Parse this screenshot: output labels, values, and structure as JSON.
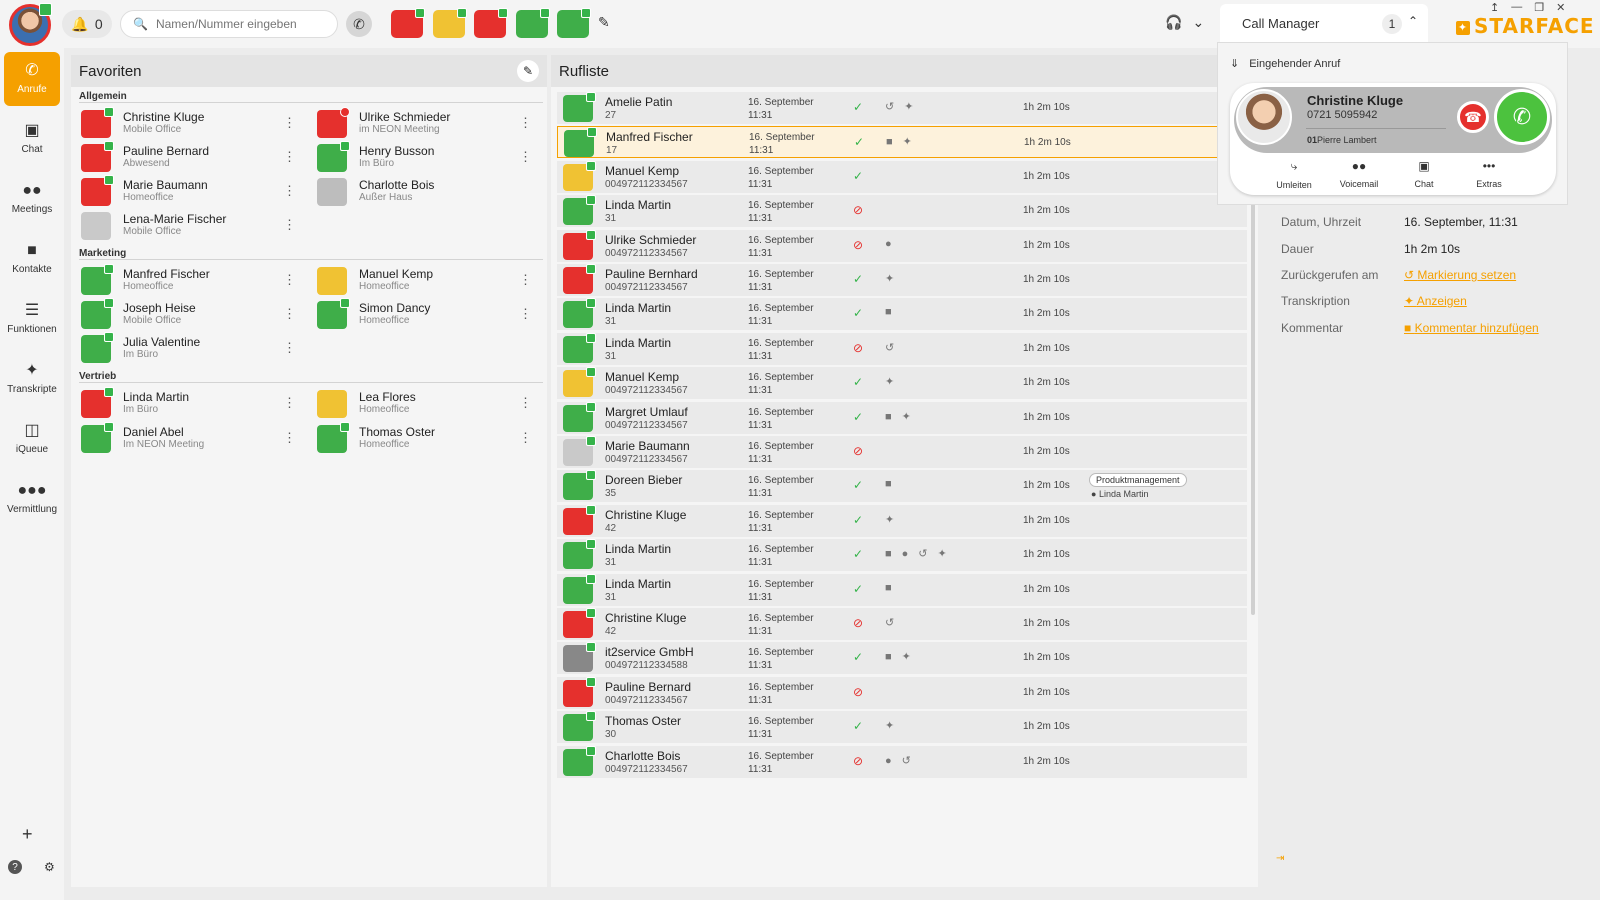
{
  "topbar": {
    "notifications": "0",
    "search_placeholder": "Namen/Nummer eingeben"
  },
  "sidebar": {
    "items": [
      {
        "label": "Anrufe",
        "icon": "phone-icon"
      },
      {
        "label": "Chat",
        "icon": "chat-icon"
      },
      {
        "label": "Meetings",
        "icon": "meetings-icon"
      },
      {
        "label": "Kontakte",
        "icon": "contacts-icon"
      },
      {
        "label": "Funktionen",
        "icon": "functions-icon"
      },
      {
        "label": "Transkripte",
        "icon": "sparkle-icon"
      },
      {
        "label": "iQueue",
        "icon": "queue-icon"
      },
      {
        "label": "Vermittlung",
        "icon": "switchboard-icon"
      }
    ]
  },
  "favorites": {
    "title": "Favoriten",
    "groups": [
      {
        "title": "Allgemein",
        "contacts": [
          {
            "name": "Christine Kluge",
            "status": "Mobile Office"
          },
          {
            "name": "Ulrike Schmieder",
            "status": "im NEON Meeting"
          },
          {
            "name": "Pauline Bernard",
            "status": "Abwesend"
          },
          {
            "name": "Henry Busson",
            "status": "Im Büro"
          },
          {
            "name": "Marie Baumann",
            "status": "Homeoffice"
          },
          {
            "name": "Charlotte Bois",
            "status": "Außer Haus"
          },
          {
            "name": "Lena-Marie Fischer",
            "status": "Mobile Office"
          }
        ]
      },
      {
        "title": "Marketing",
        "contacts": [
          {
            "name": "Manfred Fischer",
            "status": "Homeoffice"
          },
          {
            "name": "Manuel Kemp",
            "status": "Homeoffice"
          },
          {
            "name": "Joseph Heise",
            "status": "Mobile Office"
          },
          {
            "name": "Simon Dancy",
            "status": "Homeoffice"
          },
          {
            "name": "Julia Valentine",
            "status": "Im Büro"
          }
        ]
      },
      {
        "title": "Vertrieb",
        "contacts": [
          {
            "name": "Linda Martin",
            "status": "Im Büro"
          },
          {
            "name": "Lea Flores",
            "status": "Homeoffice"
          },
          {
            "name": "Daniel Abel",
            "status": "Im NEON Meeting"
          },
          {
            "name": "Thomas Oster",
            "status": "Homeoffice"
          }
        ]
      }
    ]
  },
  "calls": {
    "title": "Rufliste",
    "rows": [
      {
        "name": "Amelie Patin",
        "sub": "27",
        "date": "16. September",
        "time": "11:31",
        "duration": "1h 2m 10s"
      },
      {
        "name": "Manfred Fischer",
        "sub": "17",
        "date": "16. September",
        "time": "11:31",
        "duration": "1h 2m 10s"
      },
      {
        "name": "Manuel Kemp",
        "sub": "004972112334567",
        "date": "16. September",
        "time": "11:31",
        "duration": "1h 2m 10s"
      },
      {
        "name": "Linda Martin",
        "sub": "31",
        "date": "16. September",
        "time": "11:31",
        "duration": "1h 2m 10s"
      },
      {
        "name": "Ulrike Schmieder",
        "sub": "004972112334567",
        "date": "16. September",
        "time": "11:31",
        "duration": "1h 2m 10s"
      },
      {
        "name": "Pauline Bernhard",
        "sub": "004972112334567",
        "date": "16. September",
        "time": "11:31",
        "duration": "1h 2m 10s"
      },
      {
        "name": "Linda Martin",
        "sub": "31",
        "date": "16. September",
        "time": "11:31",
        "duration": "1h 2m 10s"
      },
      {
        "name": "Linda Martin",
        "sub": "31",
        "date": "16. September",
        "time": "11:31",
        "duration": "1h 2m 10s"
      },
      {
        "name": "Manuel Kemp",
        "sub": "004972112334567",
        "date": "16. September",
        "time": "11:31",
        "duration": "1h 2m 10s"
      },
      {
        "name": "Margret Umlauf",
        "sub": "004972112334567",
        "date": "16. September",
        "time": "11:31",
        "duration": "1h 2m 10s"
      },
      {
        "name": "Marie Baumann",
        "sub": "004972112334567",
        "date": "16. September",
        "time": "11:31",
        "duration": "1h 2m 10s"
      },
      {
        "name": "Doreen Bieber",
        "sub": "35",
        "date": "16. September",
        "time": "11:31",
        "duration": "1h 2m 10s",
        "tag": "Produktmanagement",
        "tag_user": "Linda Martin"
      },
      {
        "name": "Christine Kluge",
        "sub": "42",
        "date": "16. September",
        "time": "11:31",
        "duration": "1h 2m 10s"
      },
      {
        "name": "Linda Martin",
        "sub": "31",
        "date": "16. September",
        "time": "11:31",
        "duration": "1h 2m 10s"
      },
      {
        "name": "Linda Martin",
        "sub": "31",
        "date": "16. September",
        "time": "11:31",
        "duration": "1h 2m 10s"
      },
      {
        "name": "Christine Kluge",
        "sub": "42",
        "date": "16. September",
        "time": "11:31",
        "duration": "1h 2m 10s"
      },
      {
        "name": "it2service GmbH",
        "sub": "004972112334588",
        "date": "16. September",
        "time": "11:31",
        "duration": "1h 2m 10s"
      },
      {
        "name": "Pauline Bernard",
        "sub": "004972112334567",
        "date": "16. September",
        "time": "11:31",
        "duration": "1h 2m 10s"
      },
      {
        "name": "Thomas Oster",
        "sub": "30",
        "date": "16. September",
        "time": "11:31",
        "duration": "1h 2m 10s"
      },
      {
        "name": "Charlotte Bois",
        "sub": "004972112334567",
        "date": "16. September",
        "time": "11:31",
        "duration": "1h 2m 10s"
      }
    ]
  },
  "detail": {
    "datetime_label": "Datum, Uhrzeit",
    "datetime_value": "16. September, 11:31",
    "duration_label": "Dauer",
    "duration_value": "1h 2m 10s",
    "callback_label": "Zurückgerufen am",
    "callback_link": "Markierung setzen",
    "transcript_label": "Transkription",
    "transcript_link": "Anzeigen",
    "comment_label": "Kommentar",
    "comment_link": "Kommentar hinzufügen"
  },
  "call_manager": {
    "title": "Call Manager",
    "count": "1",
    "incoming_label": "Eingehender Anruf",
    "caller_name": "Christine Kluge",
    "caller_number": "0721 5095942",
    "via_prefix": "01",
    "via_name": "Pierre Lambert",
    "actions": [
      "Umleiten",
      "Voicemail",
      "Chat",
      "Extras"
    ]
  },
  "brand": {
    "logo_text": "STARFACE",
    "accent": "#f5a000"
  }
}
